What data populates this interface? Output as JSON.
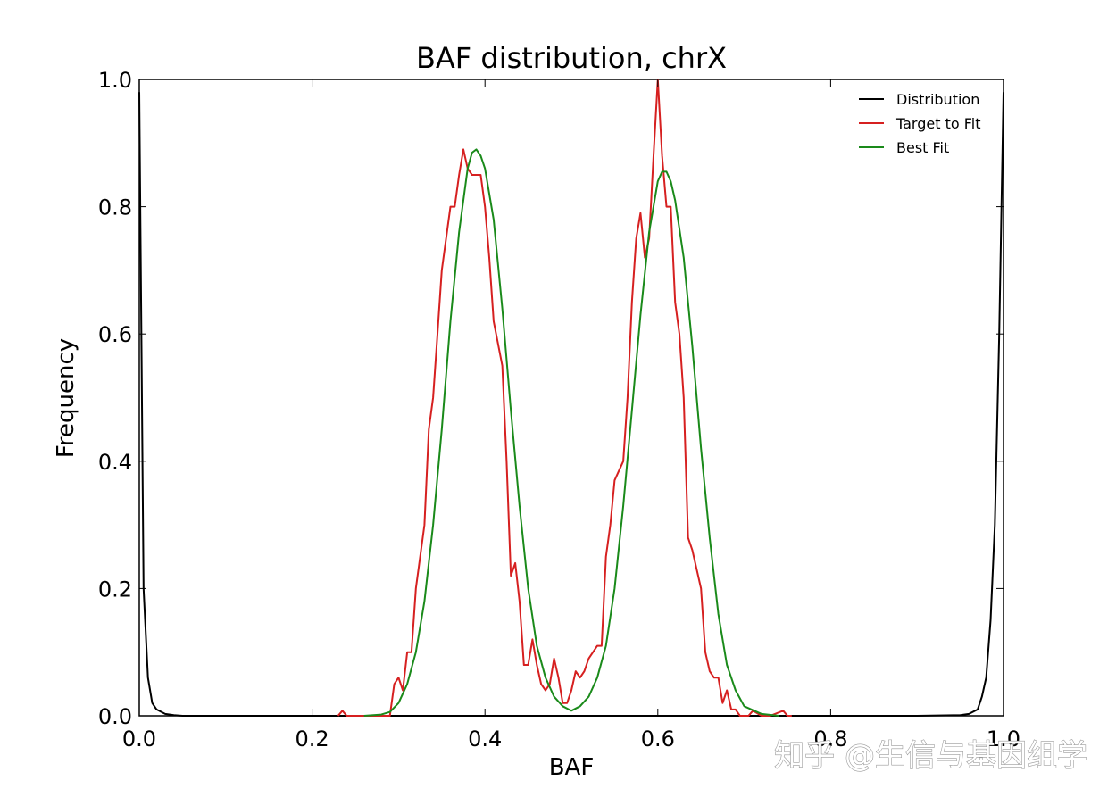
{
  "chart_data": {
    "type": "line",
    "title": "BAF distribution, chrX",
    "xlabel": "BAF",
    "ylabel": "Frequency",
    "xlim": [
      0.0,
      1.0
    ],
    "ylim": [
      0.0,
      1.0
    ],
    "xticks": [
      "0.0",
      "0.2",
      "0.4",
      "0.6",
      "0.8",
      "1.0"
    ],
    "yticks": [
      "0.0",
      "0.2",
      "0.4",
      "0.6",
      "0.8",
      "1.0"
    ],
    "grid": false,
    "legend_position": "top-right",
    "series": [
      {
        "name": "Distribution",
        "color": "#000000",
        "x": [
          0.0,
          0.005,
          0.01,
          0.015,
          0.02,
          0.03,
          0.04,
          0.05,
          0.1,
          0.2,
          0.3,
          0.4,
          0.5,
          0.6,
          0.7,
          0.8,
          0.9,
          0.95,
          0.96,
          0.97,
          0.975,
          0.98,
          0.985,
          0.99,
          0.995,
          1.0
        ],
        "y": [
          0.98,
          0.2,
          0.06,
          0.02,
          0.01,
          0.003,
          0.001,
          0.0,
          0.0,
          0.0,
          0.0,
          0.0,
          0.0,
          0.0,
          0.0,
          0.0,
          0.0,
          0.001,
          0.003,
          0.01,
          0.03,
          0.06,
          0.15,
          0.3,
          0.6,
          0.98
        ]
      },
      {
        "name": "Target to Fit",
        "color": "#d62020",
        "x": [
          0.23,
          0.235,
          0.24,
          0.29,
          0.295,
          0.3,
          0.305,
          0.31,
          0.315,
          0.32,
          0.33,
          0.335,
          0.34,
          0.345,
          0.35,
          0.36,
          0.365,
          0.37,
          0.375,
          0.38,
          0.385,
          0.39,
          0.395,
          0.4,
          0.405,
          0.41,
          0.42,
          0.425,
          0.43,
          0.435,
          0.44,
          0.445,
          0.45,
          0.455,
          0.46,
          0.465,
          0.47,
          0.475,
          0.48,
          0.485,
          0.49,
          0.495,
          0.5,
          0.505,
          0.51,
          0.515,
          0.52,
          0.525,
          0.53,
          0.535,
          0.54,
          0.545,
          0.55,
          0.56,
          0.565,
          0.57,
          0.575,
          0.58,
          0.585,
          0.59,
          0.595,
          0.6,
          0.605,
          0.61,
          0.615,
          0.62,
          0.625,
          0.63,
          0.635,
          0.64,
          0.65,
          0.655,
          0.66,
          0.665,
          0.67,
          0.675,
          0.68,
          0.685,
          0.69,
          0.695,
          0.7,
          0.705,
          0.71,
          0.72,
          0.725,
          0.73,
          0.745,
          0.75,
          0.755
        ],
        "y": [
          0.0,
          0.008,
          0.0,
          0.0,
          0.05,
          0.06,
          0.04,
          0.1,
          0.1,
          0.2,
          0.3,
          0.45,
          0.5,
          0.6,
          0.7,
          0.8,
          0.8,
          0.85,
          0.89,
          0.86,
          0.85,
          0.85,
          0.85,
          0.8,
          0.72,
          0.62,
          0.55,
          0.4,
          0.22,
          0.24,
          0.18,
          0.08,
          0.08,
          0.12,
          0.08,
          0.05,
          0.04,
          0.05,
          0.09,
          0.06,
          0.02,
          0.02,
          0.04,
          0.07,
          0.06,
          0.07,
          0.09,
          0.1,
          0.11,
          0.11,
          0.25,
          0.3,
          0.37,
          0.4,
          0.5,
          0.65,
          0.75,
          0.79,
          0.72,
          0.75,
          0.88,
          1.0,
          0.88,
          0.8,
          0.8,
          0.65,
          0.6,
          0.5,
          0.28,
          0.26,
          0.2,
          0.1,
          0.07,
          0.06,
          0.06,
          0.02,
          0.04,
          0.01,
          0.01,
          0.0,
          0.0,
          0.0,
          0.008,
          0.0,
          0.0,
          0.0,
          0.008,
          0.0,
          0.0
        ]
      },
      {
        "name": "Best Fit",
        "color": "#1a8a1a",
        "x": [
          0.26,
          0.28,
          0.29,
          0.3,
          0.31,
          0.32,
          0.33,
          0.34,
          0.35,
          0.36,
          0.37,
          0.38,
          0.385,
          0.39,
          0.395,
          0.4,
          0.41,
          0.42,
          0.43,
          0.44,
          0.45,
          0.46,
          0.47,
          0.48,
          0.49,
          0.5,
          0.51,
          0.52,
          0.53,
          0.54,
          0.55,
          0.56,
          0.57,
          0.58,
          0.59,
          0.6,
          0.605,
          0.61,
          0.615,
          0.62,
          0.63,
          0.64,
          0.65,
          0.66,
          0.67,
          0.68,
          0.69,
          0.7,
          0.72,
          0.74
        ],
        "y": [
          0.0,
          0.002,
          0.006,
          0.02,
          0.05,
          0.1,
          0.18,
          0.3,
          0.45,
          0.62,
          0.76,
          0.86,
          0.885,
          0.89,
          0.88,
          0.86,
          0.78,
          0.64,
          0.48,
          0.33,
          0.2,
          0.11,
          0.06,
          0.03,
          0.015,
          0.008,
          0.015,
          0.03,
          0.06,
          0.11,
          0.2,
          0.33,
          0.48,
          0.63,
          0.76,
          0.84,
          0.855,
          0.855,
          0.84,
          0.81,
          0.72,
          0.58,
          0.42,
          0.28,
          0.16,
          0.08,
          0.04,
          0.015,
          0.003,
          0.0
        ]
      }
    ]
  },
  "watermark": "知乎 @生信与基因组学"
}
